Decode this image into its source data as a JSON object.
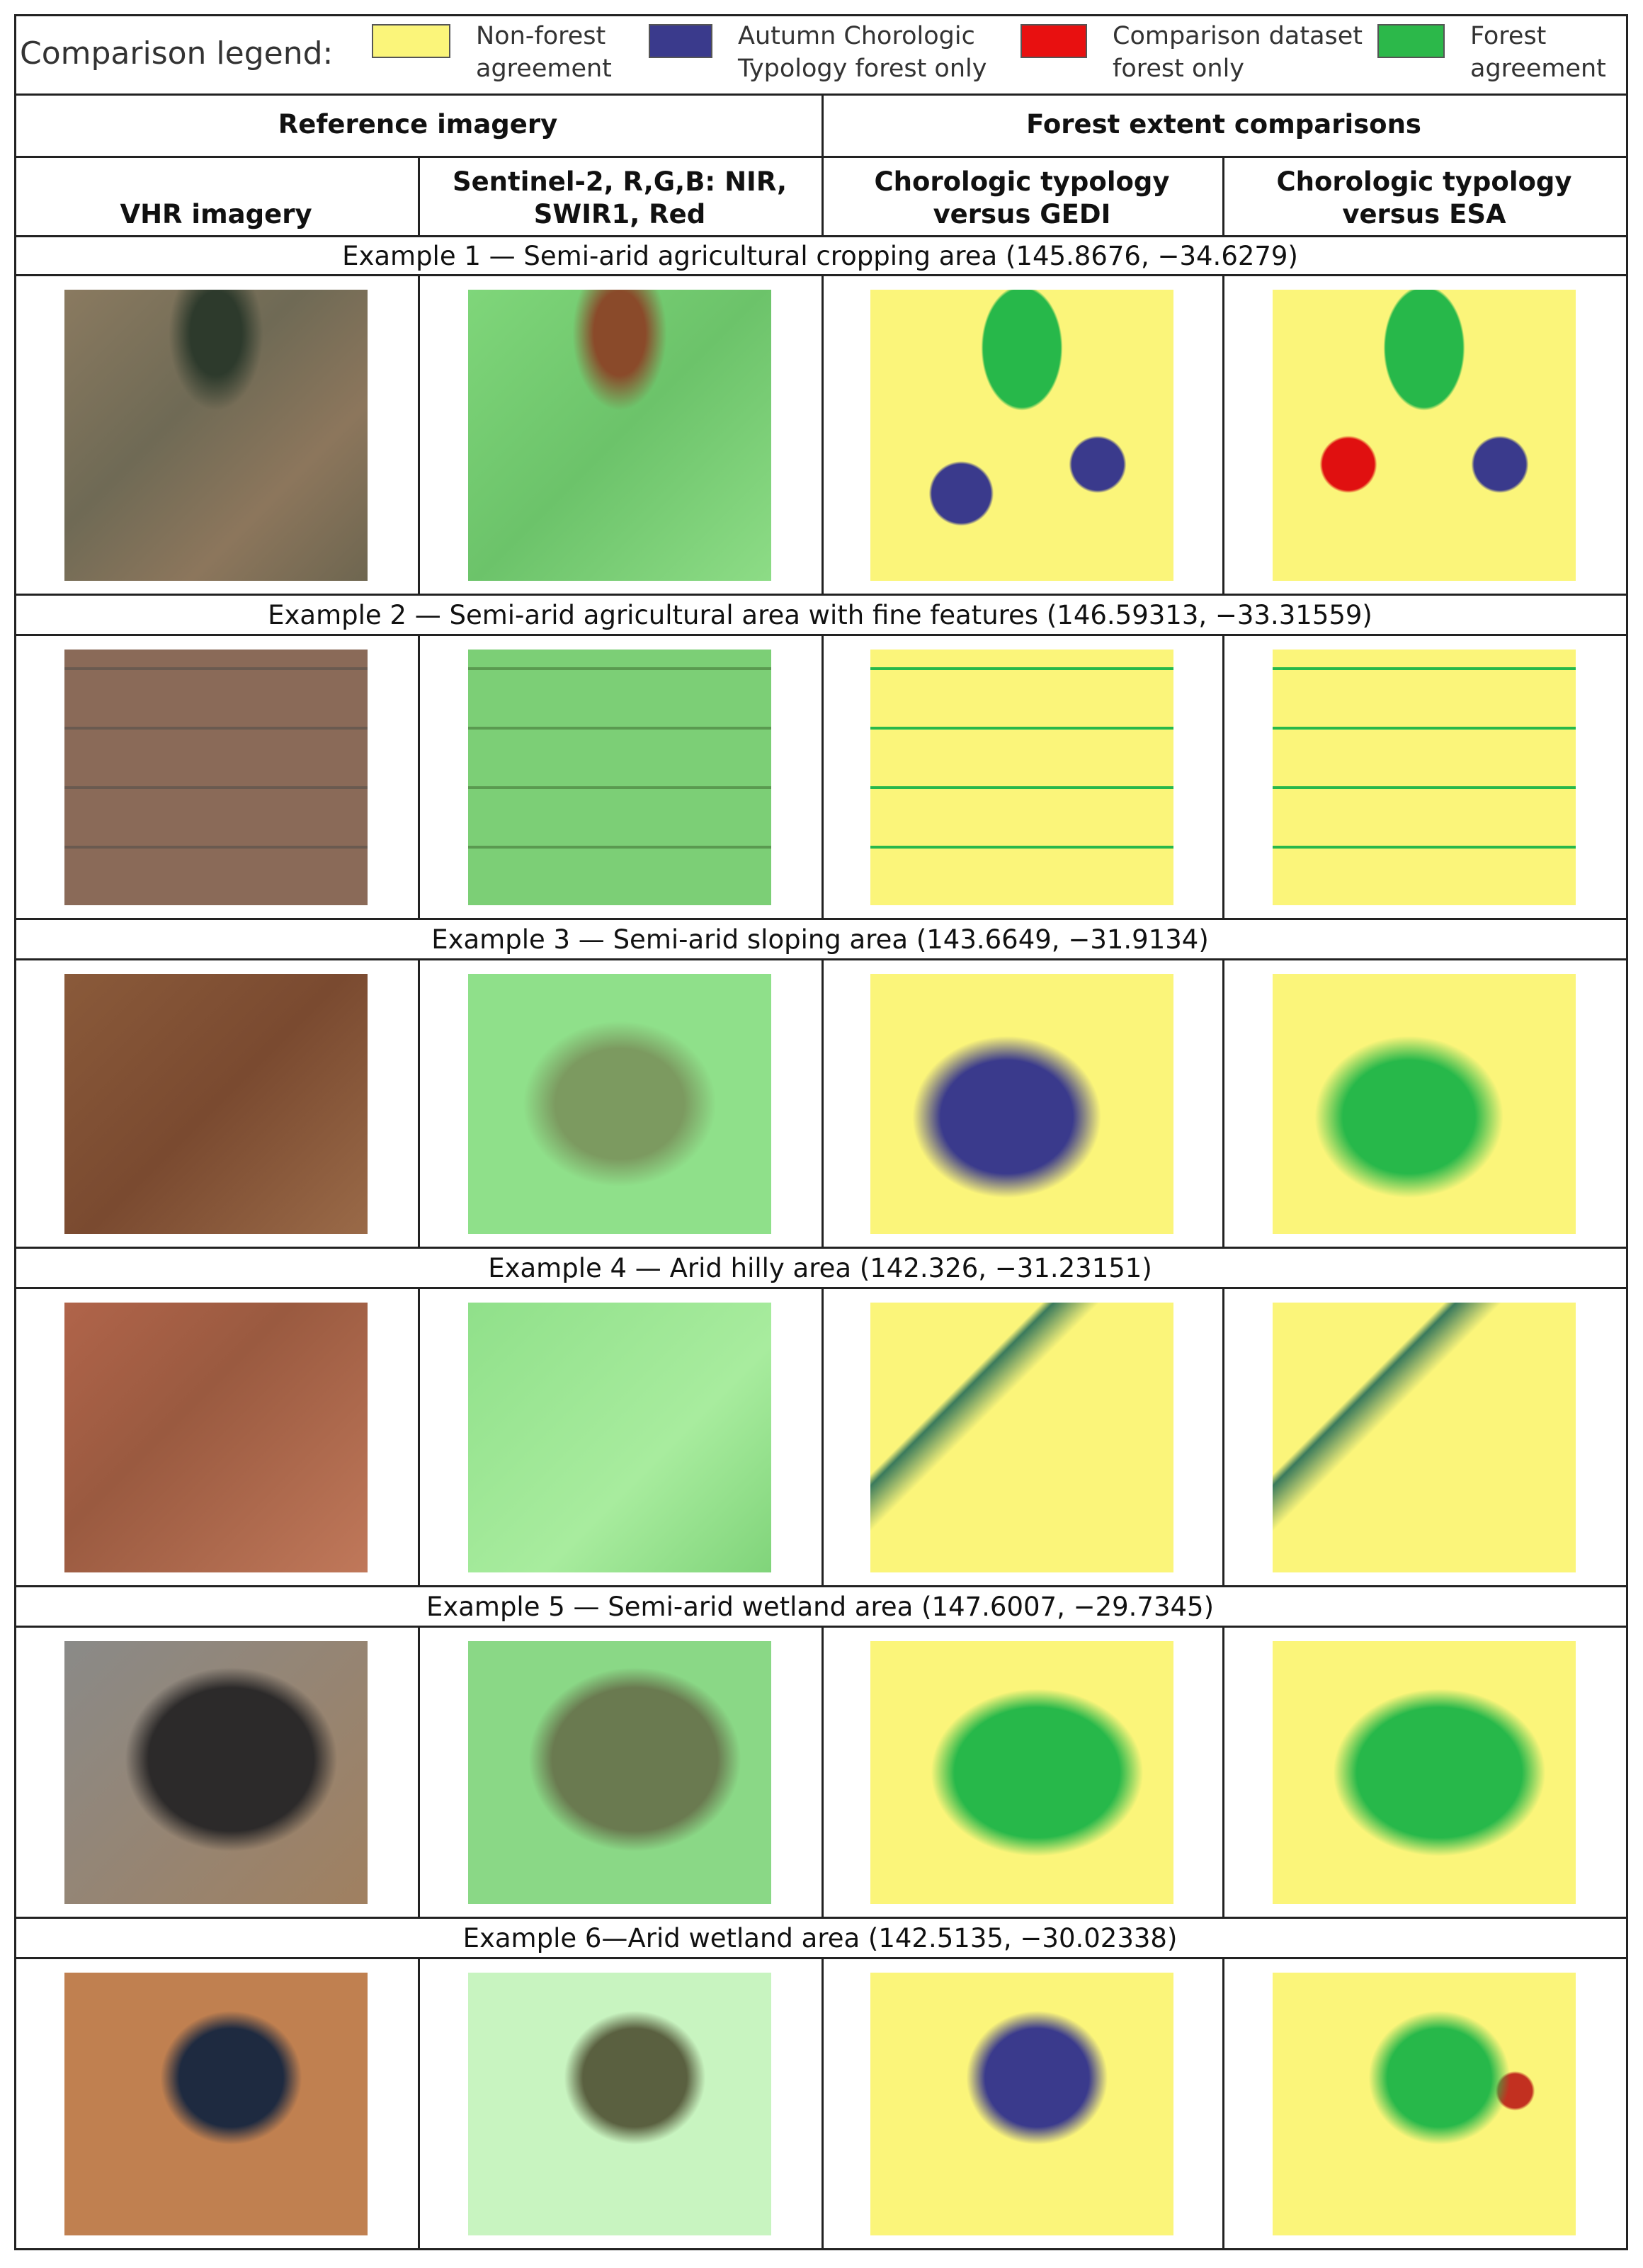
{
  "legend": {
    "label": "Comparison legend:",
    "items": [
      {
        "lines": [
          "Non-forest",
          "agreement"
        ]
      },
      {
        "lines": [
          "Autumn Chorologic",
          "Typology forest only"
        ]
      },
      {
        "lines": [
          "Comparison dataset",
          "forest only"
        ]
      },
      {
        "lines": [
          "Forest",
          "agreement"
        ]
      }
    ]
  },
  "header": {
    "groups": [
      "Reference imagery",
      "Forest extent comparisons"
    ],
    "columns": [
      "VHR imagery",
      "Sentinel-2, R,G,B: NIR, SWIR1, Red",
      "Chorologic typology versus GEDI",
      "Chorologic typology versus ESA"
    ]
  },
  "examples": [
    {
      "title": "Example 1 — Semi-arid agricultural cropping area (145.8676, −34.6279)"
    },
    {
      "title": "Example 2 — Semi-arid agricultural area with fine features (146.59313, −33.31559)"
    },
    {
      "title": "Example 3 — Semi-arid sloping area (143.6649, −31.9134)"
    },
    {
      "title": "Example 4 — Arid hilly area (142.326, −31.23151)"
    },
    {
      "title": "Example 5 — Semi-arid wetland area (147.6007, −29.7345)"
    },
    {
      "title": "Example 6—Arid wetland area (142.5135, −30.02338)"
    }
  ]
}
